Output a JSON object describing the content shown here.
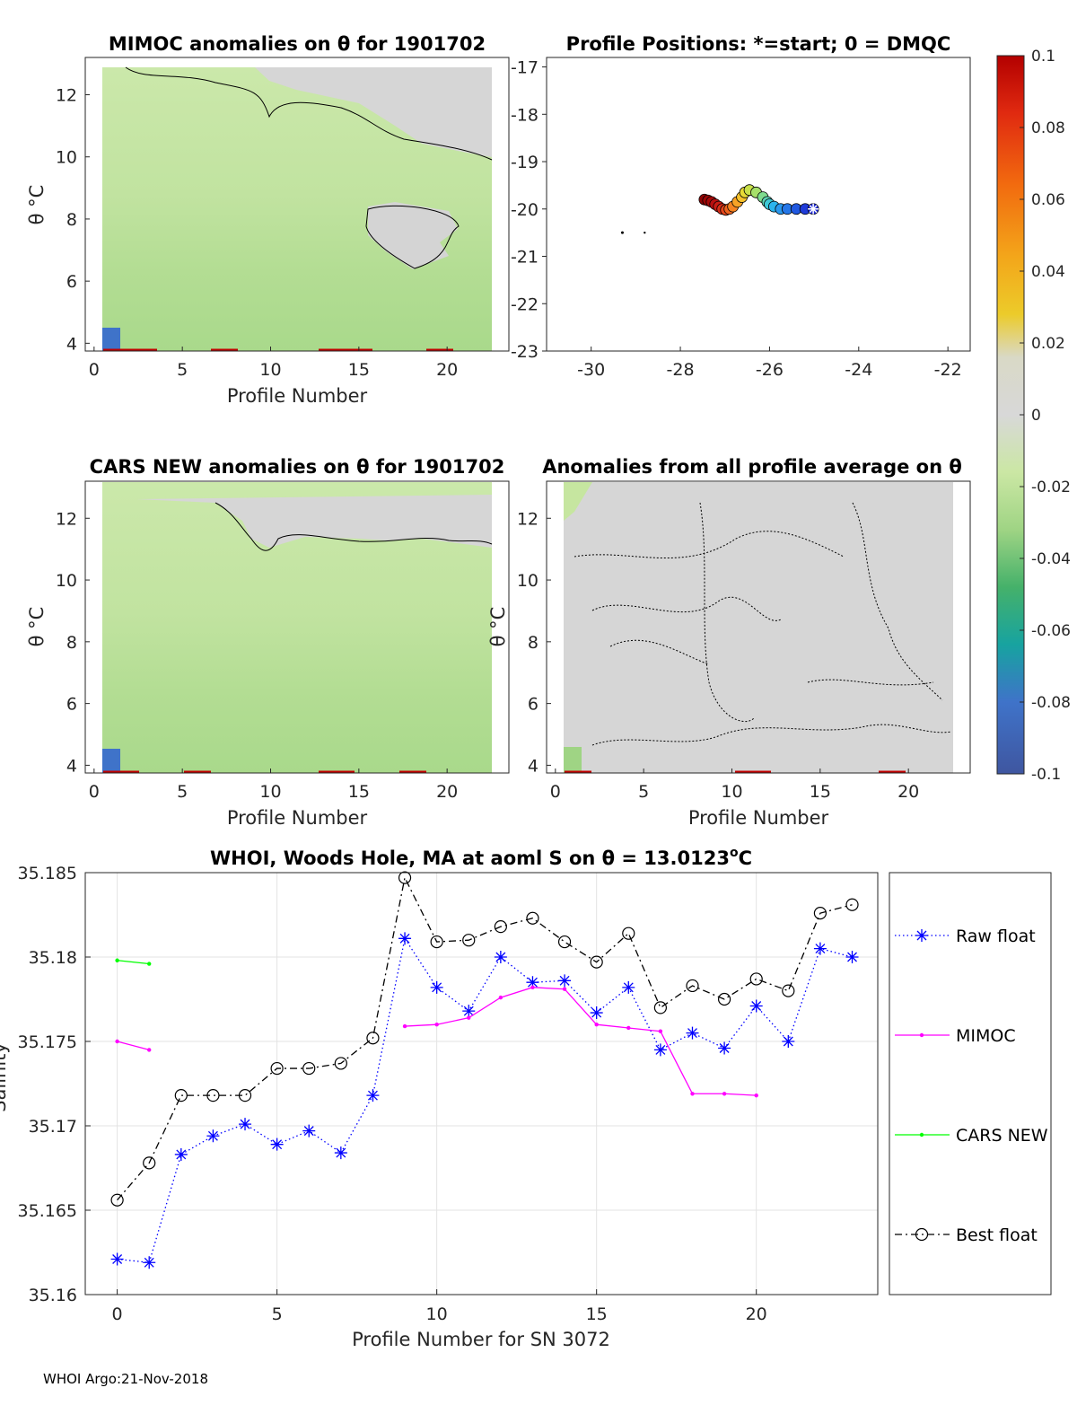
{
  "chart_data": [
    {
      "id": "mimoc",
      "type": "heatmap",
      "title": "MIMOC anomalies on θ  for 1901702",
      "xlabel": "Profile Number",
      "ylabel": "θ °C",
      "xlim": [
        -0.5,
        23.5
      ],
      "ylim": [
        3.75,
        13.2
      ],
      "xticks": [
        "0",
        "5",
        "10",
        "15",
        "20"
      ],
      "yticks": [
        "4",
        "6",
        "8",
        "10",
        "12"
      ]
    },
    {
      "id": "positions",
      "type": "scatter",
      "title": "Profile Positions: *=start; 0 = DMQC",
      "xlim": [
        -31,
        -21.5
      ],
      "ylim": [
        -23,
        -16.8
      ],
      "xticks": [
        "-30",
        "-28",
        "-26",
        "-24",
        "-22"
      ],
      "yticks": [
        "-17",
        "-18",
        "-19",
        "-20",
        "-21",
        "-22",
        "-23"
      ],
      "points": {
        "lon": [
          -25.02,
          -25.2,
          -25.4,
          -25.6,
          -25.75,
          -25.9,
          -26.0,
          -26.05,
          -26.15,
          -26.3,
          -26.45,
          -26.55,
          -26.62,
          -26.72,
          -26.82,
          -26.9,
          -26.98,
          -27.06,
          -27.14,
          -27.22,
          -27.3,
          -27.38,
          -27.46
        ],
        "lat": [
          -20.0,
          -20.0,
          -20.0,
          -20.0,
          -20.0,
          -19.95,
          -19.9,
          -19.85,
          -19.75,
          -19.65,
          -19.6,
          -19.65,
          -19.75,
          -19.85,
          -19.95,
          -20.0,
          -20.02,
          -20.0,
          -19.95,
          -19.9,
          -19.85,
          -19.82,
          -19.8
        ]
      }
    },
    {
      "id": "cars",
      "type": "heatmap",
      "title": "CARS NEW anomalies on θ for 1901702",
      "xlabel": "Profile Number",
      "ylabel": "θ °C",
      "xlim": [
        -0.5,
        23.5
      ],
      "ylim": [
        3.75,
        13.2
      ],
      "xticks": [
        "0",
        "5",
        "10",
        "15",
        "20"
      ],
      "yticks": [
        "4",
        "6",
        "8",
        "10",
        "12"
      ]
    },
    {
      "id": "avg",
      "type": "heatmap",
      "title": "Anomalies from all profile average on θ",
      "xlabel": "Profile Number",
      "ylabel": "θ °C",
      "xlim": [
        -0.5,
        23.5
      ],
      "ylim": [
        3.75,
        13.2
      ],
      "xticks": [
        "0",
        "5",
        "10",
        "15",
        "20"
      ],
      "yticks": [
        "4",
        "6",
        "8",
        "10",
        "12"
      ]
    },
    {
      "id": "colorbar",
      "type": "heatmap",
      "range": [
        -0.1,
        0.1
      ],
      "ticks": [
        "0.1",
        "0.08",
        "0.06",
        "0.04",
        "0.02",
        "0",
        "-0.02",
        "-0.04",
        "-0.06",
        "-0.08",
        "-0.1"
      ]
    },
    {
      "id": "salinity",
      "type": "line",
      "title_prefix": "WHOI, Woods Hole, MA at aoml S on θ = 13.0123",
      "title_sup": "o",
      "title_suffix": "C",
      "xlabel": "Profile Number for SN 3072",
      "ylabel": "Salinity",
      "xlim": [
        -1,
        23.8
      ],
      "ylim": [
        35.16,
        35.185
      ],
      "xticks": [
        "0",
        "5",
        "10",
        "15",
        "20"
      ],
      "yticks": [
        "35.16",
        "35.165",
        "35.17",
        "35.175",
        "35.18",
        "35.185"
      ],
      "series": [
        {
          "name": "Raw float",
          "color": "#0000ff",
          "x": [
            0,
            1,
            2,
            3,
            4,
            5,
            6,
            7,
            8,
            9,
            10,
            11,
            12,
            13,
            14,
            15,
            16,
            17,
            18,
            19,
            20,
            21,
            22,
            23
          ],
          "values": [
            35.1621,
            35.1619,
            35.1683,
            35.1694,
            35.1701,
            35.1689,
            35.1697,
            35.1684,
            35.1718,
            35.1811,
            35.1782,
            35.1768,
            35.18,
            35.1785,
            35.1786,
            35.1767,
            35.1782,
            35.1745,
            35.1755,
            35.1746,
            35.1771,
            35.175,
            35.1805,
            35.18
          ]
        },
        {
          "name": "MIMOC",
          "color": "#ff00ff",
          "x": [
            0,
            1,
            9,
            10,
            11,
            12,
            13,
            14,
            15,
            16,
            17,
            18,
            19,
            20
          ],
          "values": [
            35.175,
            35.1745,
            35.1759,
            35.176,
            35.1764,
            35.1776,
            35.1782,
            35.1781,
            35.176,
            35.1758,
            35.1756,
            35.1719,
            35.1719,
            35.1718
          ]
        },
        {
          "name": "CARS NEW",
          "color": "#00ff00",
          "x": [
            0,
            1
          ],
          "values": [
            35.1798,
            35.1796
          ]
        },
        {
          "name": "Best float",
          "color": "#000000",
          "x": [
            0,
            1,
            2,
            3,
            4,
            5,
            6,
            7,
            8,
            9,
            10,
            11,
            12,
            13,
            14,
            15,
            16,
            17,
            18,
            19,
            20,
            21,
            22,
            23
          ],
          "values": [
            35.1656,
            35.1678,
            35.1718,
            35.1718,
            35.1718,
            35.1734,
            35.1734,
            35.1737,
            35.1752,
            35.1847,
            35.1809,
            35.181,
            35.1818,
            35.1823,
            35.1809,
            35.1797,
            35.1814,
            35.177,
            35.1783,
            35.1775,
            35.1787,
            35.178,
            35.1826,
            35.1831
          ]
        }
      ]
    }
  ],
  "footer": "WHOI Argo:21-Nov-2018",
  "colors": {
    "light_green": "#c6e6a0",
    "mid_green": "#b3de93",
    "gray": "#d6d6d6",
    "grid": "#e3e3e3"
  }
}
